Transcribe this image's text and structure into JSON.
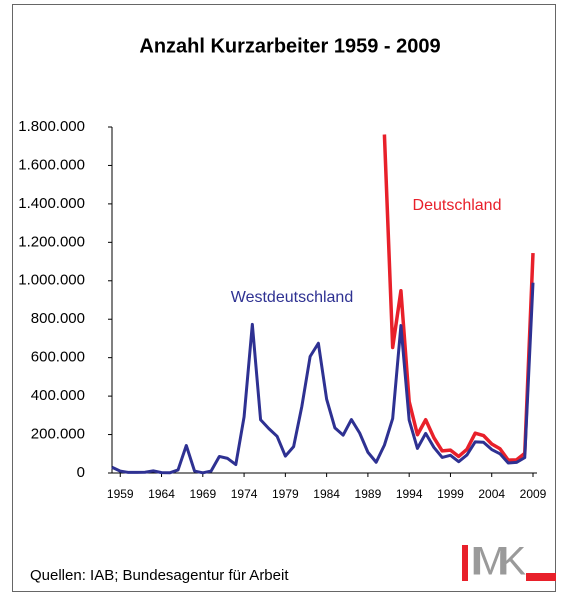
{
  "chart_data": {
    "type": "line",
    "title": "Anzahl Kurzarbeiter 1959 - 2009",
    "x": [
      1958,
      1959,
      1960,
      1961,
      1962,
      1963,
      1964,
      1965,
      1966,
      1967,
      1968,
      1969,
      1970,
      1971,
      1972,
      1973,
      1974,
      1975,
      1976,
      1977,
      1978,
      1979,
      1980,
      1981,
      1982,
      1983,
      1984,
      1985,
      1986,
      1987,
      1988,
      1989,
      1990,
      1991,
      1992,
      1993,
      1994,
      1995,
      1996,
      1997,
      1998,
      1999,
      2000,
      2001,
      2002,
      2003,
      2004,
      2005,
      2006,
      2007,
      2008,
      2009
    ],
    "series": [
      {
        "name": "Westdeutschland",
        "color": "#2e3192",
        "values": [
          30000,
          10000,
          3000,
          3000,
          4000,
          11000,
          2000,
          1000,
          16000,
          143000,
          10000,
          1000,
          10000,
          86000,
          76000,
          44000,
          292000,
          773000,
          277000,
          231000,
          191000,
          88000,
          137000,
          347000,
          606000,
          675000,
          384000,
          235000,
          197000,
          278000,
          208000,
          108000,
          56000,
          145000,
          283000,
          767000,
          275000,
          128000,
          206000,
          133000,
          81000,
          92000,
          59000,
          94000,
          162000,
          160000,
          122000,
          100000,
          52000,
          55000,
          80000,
          990000
        ]
      },
      {
        "name": "Deutschland",
        "color": "#e8202a",
        "values": [
          null,
          null,
          null,
          null,
          null,
          null,
          null,
          null,
          null,
          null,
          null,
          null,
          null,
          null,
          null,
          null,
          null,
          null,
          null,
          null,
          null,
          null,
          null,
          null,
          null,
          null,
          null,
          null,
          null,
          null,
          null,
          null,
          null,
          1761000,
          653000,
          948000,
          372000,
          199000,
          277000,
          183000,
          115000,
          119000,
          86000,
          123000,
          207000,
          195000,
          151000,
          126000,
          67000,
          68000,
          102000,
          1144000
        ]
      }
    ],
    "xlim": [
      1958,
      2009
    ],
    "xticks": [
      1959,
      1964,
      1969,
      1974,
      1979,
      1984,
      1989,
      1994,
      1999,
      2004,
      2009
    ],
    "ylim": [
      0,
      1800000
    ],
    "yticks": [
      0,
      {
        "value": 200000,
        "label": "200.000"
      },
      {
        "value": 400000,
        "label": "400.000"
      },
      {
        "value": 600000,
        "label": "600.000"
      },
      {
        "value": 800000,
        "label": "800.000"
      },
      {
        "value": 1000000,
        "label": "1.000.000"
      },
      {
        "value": 1200000,
        "label": "1.200.000"
      },
      {
        "value": 1400000,
        "label": "1.400.000"
      },
      {
        "value": 1600000,
        "label": "1.600.000"
      },
      {
        "value": 1800000,
        "label": "1.800.000"
      }
    ],
    "source": "Quellen: IAB; Bundesagentur für Arbeit",
    "logo": "IMK"
  }
}
